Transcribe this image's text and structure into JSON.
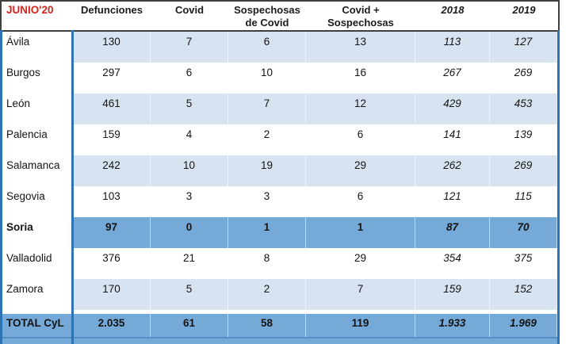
{
  "header": {
    "period": "JUNIO'20",
    "columns": [
      {
        "l1": "Defunciones",
        "l2": ""
      },
      {
        "l1": "Covid",
        "l2": ""
      },
      {
        "l1": "Sospechosas",
        "l2": "de Covid"
      },
      {
        "l1": "Covid +",
        "l2": "Sospechosas"
      },
      {
        "l1": "2018",
        "l2": ""
      },
      {
        "l1": "2019",
        "l2": ""
      }
    ]
  },
  "rows": [
    {
      "name": "Ávila",
      "values": [
        "130",
        "7",
        "6",
        "13",
        "113",
        "127"
      ]
    },
    {
      "name": "Burgos",
      "values": [
        "297",
        "6",
        "10",
        "16",
        "267",
        "269"
      ]
    },
    {
      "name": "León",
      "values": [
        "461",
        "5",
        "7",
        "12",
        "429",
        "453"
      ]
    },
    {
      "name": "Palencia",
      "values": [
        "159",
        "4",
        "2",
        "6",
        "141",
        "139"
      ]
    },
    {
      "name": "Salamanca",
      "values": [
        "242",
        "10",
        "19",
        "29",
        "262",
        "269"
      ]
    },
    {
      "name": "Segovia",
      "values": [
        "103",
        "3",
        "3",
        "6",
        "121",
        "115"
      ]
    },
    {
      "name": "Soria",
      "values": [
        "97",
        "0",
        "1",
        "1",
        "87",
        "70"
      ]
    },
    {
      "name": "Valladolid",
      "values": [
        "376",
        "21",
        "8",
        "29",
        "354",
        "375"
      ]
    },
    {
      "name": "Zamora",
      "values": [
        "170",
        "5",
        "2",
        "7",
        "159",
        "152"
      ]
    }
  ],
  "total": {
    "name": "TOTAL CyL",
    "values": [
      "2.035",
      "61",
      "58",
      "119",
      "1.933",
      "1.969"
    ]
  },
  "colors": {
    "period_red": "#d6231b",
    "row_light_blue": "#d7e3f0",
    "row_highlight_blue": "#74a9d8",
    "divider_blue": "#2e74b5",
    "header_border": "#3f3f3f"
  }
}
